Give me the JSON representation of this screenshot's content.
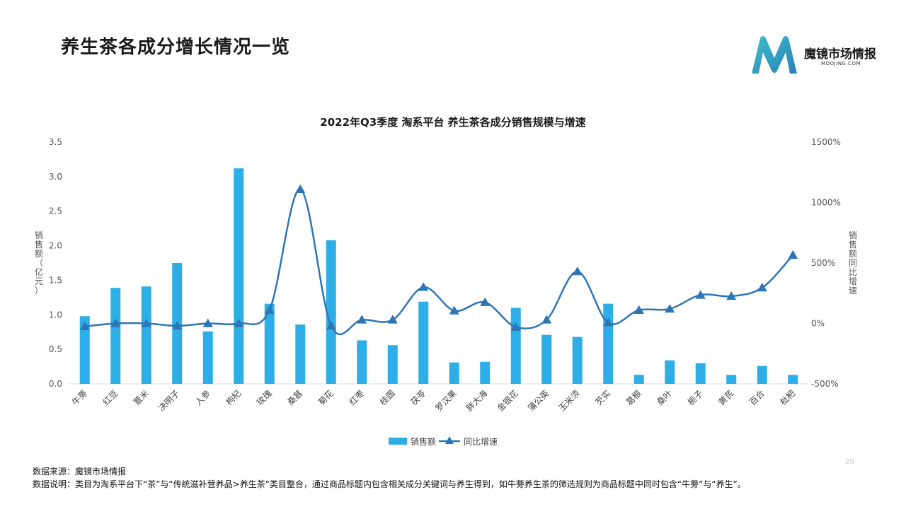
{
  "page": {
    "title": "养生茶各成分增长情况一览",
    "page_number": "29"
  },
  "logo": {
    "name": "魔镜市场情报",
    "sub": "MOOJING.COM",
    "colors": [
      "#2c7fb8",
      "#3cc0c8"
    ]
  },
  "footer": {
    "source": "数据来源：魔镜市场情报",
    "note": "数据说明：类目为淘系平台下“茶”与“传统滋补营养品>养生茶”类目整合，通过商品标题内包含相关成分关键词与养生得到，如牛蒡养生茶的筛选规则为商品标题中同时包含“牛蒡”与“养生”。"
  },
  "chart_data": {
    "type": "bar",
    "title": "2022年Q3季度 淘系平台 养生茶各成分销售规模与增速",
    "categories": [
      "牛蒡",
      "红豆",
      "薏米",
      "决明子",
      "人参",
      "枸杞",
      "玫瑰",
      "桑葚",
      "菊花",
      "红枣",
      "桂圆",
      "茯苓",
      "罗汉果",
      "胖大海",
      "金银花",
      "蒲公英",
      "玉米须",
      "芡实",
      "葛根",
      "桑叶",
      "栀子",
      "黄芪",
      "百合",
      "枇杷"
    ],
    "ylabel_left": "销售额（亿元）",
    "ylabel_right": "销售额同比增速",
    "y_left_range": [
      0,
      3.5
    ],
    "y_left_ticks": [
      "0.0",
      "0.5",
      "1.0",
      "1.5",
      "2.0",
      "2.5",
      "3.0",
      "3.5"
    ],
    "y_right_range": [
      -500,
      1500
    ],
    "y_right_ticks": [
      "-500%",
      "0%",
      "500%",
      "1000%",
      "1500%"
    ],
    "legend_position": "bottom",
    "series": [
      {
        "name": "销售额",
        "type": "bar",
        "color": "#2eaee6",
        "values": [
          0.98,
          1.39,
          1.41,
          1.75,
          0.76,
          3.12,
          1.16,
          0.86,
          2.08,
          0.63,
          0.56,
          1.19,
          0.31,
          0.32,
          1.1,
          0.71,
          0.68,
          1.16,
          0.13,
          0.34,
          0.3,
          0.13,
          0.26,
          0.13
        ]
      },
      {
        "name": "同比增速",
        "type": "line",
        "color": "#2e75b6",
        "values": [
          -25,
          0,
          0,
          -20,
          0,
          0,
          110,
          1110,
          -20,
          30,
          30,
          300,
          105,
          175,
          -30,
          30,
          430,
          5,
          110,
          120,
          235,
          225,
          295,
          565
        ]
      }
    ]
  }
}
